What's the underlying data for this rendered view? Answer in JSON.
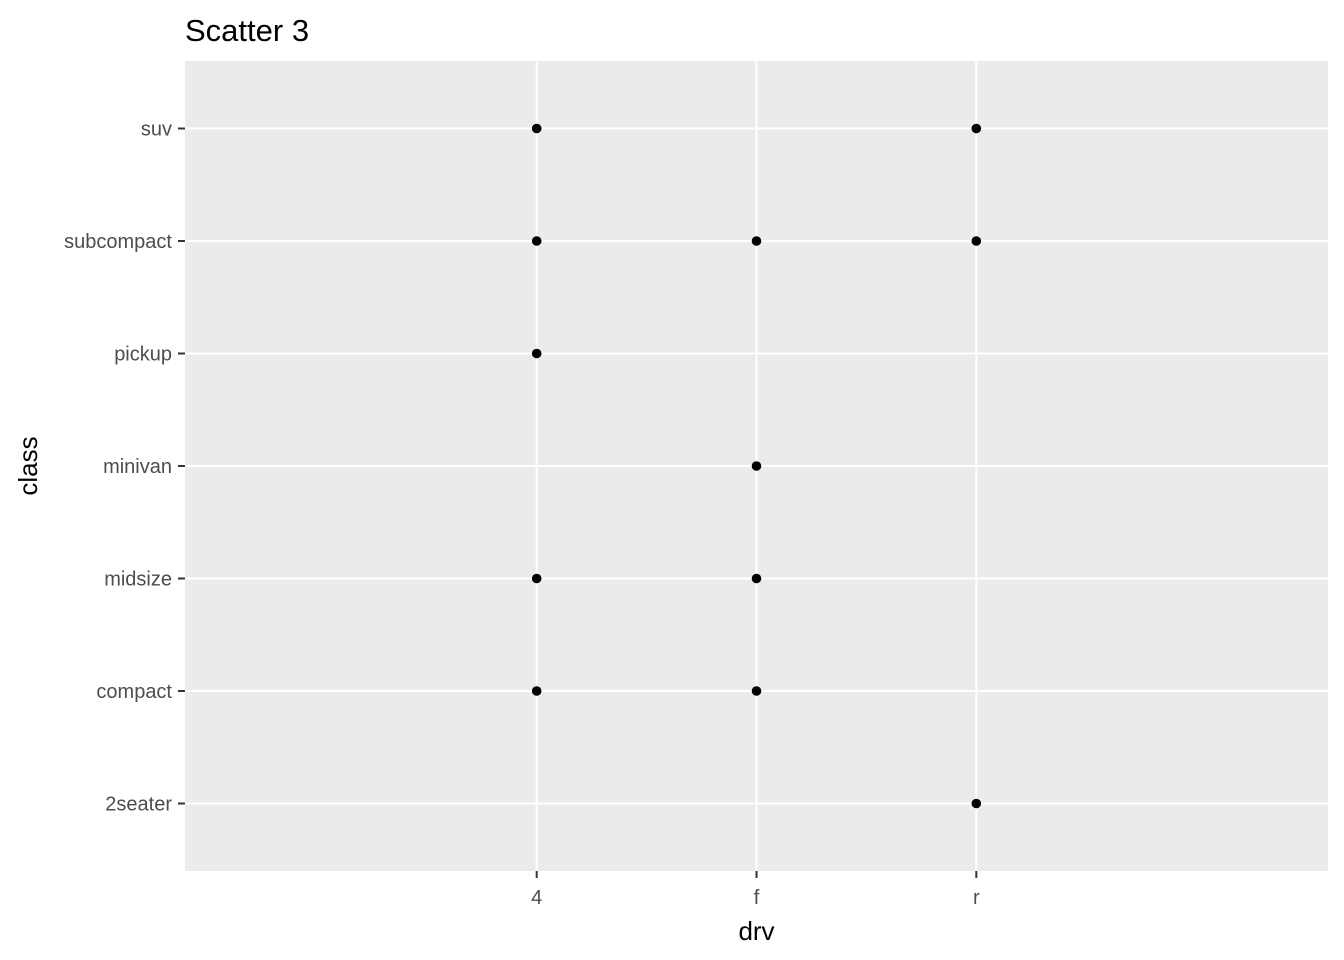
{
  "chart_data": {
    "type": "scatter",
    "title": "Scatter 3",
    "xlabel": "drv",
    "ylabel": "class",
    "x_categories": [
      "4",
      "f",
      "r"
    ],
    "y_categories": [
      "2seater",
      "compact",
      "midsize",
      "minivan",
      "pickup",
      "subcompact",
      "suv"
    ],
    "points": [
      {
        "x": "4",
        "y": "suv"
      },
      {
        "x": "r",
        "y": "suv"
      },
      {
        "x": "4",
        "y": "subcompact"
      },
      {
        "x": "f",
        "y": "subcompact"
      },
      {
        "x": "r",
        "y": "subcompact"
      },
      {
        "x": "4",
        "y": "pickup"
      },
      {
        "x": "f",
        "y": "minivan"
      },
      {
        "x": "4",
        "y": "midsize"
      },
      {
        "x": "f",
        "y": "midsize"
      },
      {
        "x": "4",
        "y": "compact"
      },
      {
        "x": "f",
        "y": "compact"
      },
      {
        "x": "r",
        "y": "2seater"
      }
    ],
    "grid": true,
    "legend": "none",
    "colors": {
      "panel_background": "#ebebeb",
      "grid": "#ffffff",
      "point": "#000000",
      "tick_text": "#4d4d4d",
      "tick_mark": "#333333"
    }
  }
}
